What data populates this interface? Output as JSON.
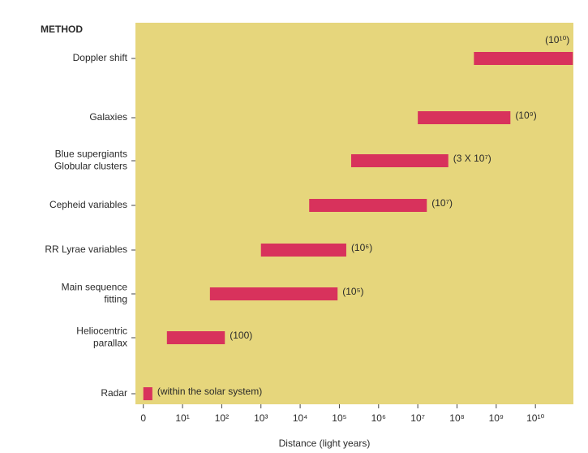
{
  "chart_data": {
    "type": "range-bar",
    "y_header": "METHOD",
    "xlabel": "Distance (light years)",
    "categories": [
      [
        "Doppler shift"
      ],
      [
        "Galaxies"
      ],
      [
        "Blue supergiants",
        "Globular clusters"
      ],
      [
        "Cepheid variables"
      ],
      [
        "RR Lyrae variables"
      ],
      [
        "Main sequence",
        "fitting"
      ],
      [
        "Heliocentric",
        "parallax"
      ],
      [
        "Radar"
      ]
    ],
    "starts": [
      270000000,
      10000000,
      200000,
      17000,
      1000,
      50,
      4,
      1
    ],
    "ends": [
      90000000000,
      2300000000,
      60000000,
      17000000,
      150000,
      90000,
      120,
      1.7
    ],
    "annotations": [
      "(10¹⁰)",
      "(10⁹)",
      "(3 X 10⁷)",
      "(10⁷)",
      "(10⁶)",
      "(10⁵)",
      "(100)",
      "(within the solar system)"
    ],
    "color": "#d8325c",
    "xscale": "log",
    "xlim": [
      0.63,
      93000000000
    ],
    "xticks": [
      {
        "value": 1,
        "label": "0"
      },
      {
        "value": 10,
        "label": "10¹"
      },
      {
        "value": 100,
        "label": "10²"
      },
      {
        "value": 1000,
        "label": "10³"
      },
      {
        "value": 10000,
        "label": "10⁴"
      },
      {
        "value": 100000,
        "label": "10⁵"
      },
      {
        "value": 1000000,
        "label": "10⁶"
      },
      {
        "value": 10000000,
        "label": "10⁷"
      },
      {
        "value": 100000000,
        "label": "10⁸"
      },
      {
        "value": 1000000000,
        "label": "10⁹"
      },
      {
        "value": 10000000000,
        "label": "10¹⁰"
      }
    ]
  }
}
